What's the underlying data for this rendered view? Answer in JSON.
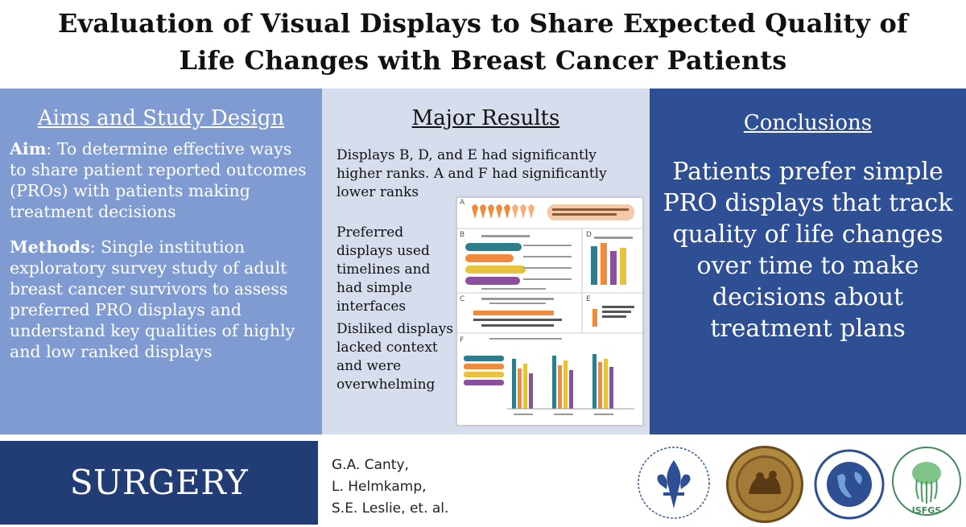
{
  "title": {
    "line1": "Evaluation of Visual Displays to Share Expected Quality of",
    "line2": "Life Changes with Breast Cancer Patients"
  },
  "aims": {
    "heading": "Aims and Study Design",
    "aim_label": "Aim",
    "aim_text": ": To determine effective ways to share patient reported outcomes (PROs) with patients making treatment decisions",
    "methods_label": "Methods",
    "methods_text": ": Single institution exploratory survey study of adult breast cancer survivors to assess preferred PRO displays and understand key qualities of highly and low ranked displays"
  },
  "results": {
    "heading": "Major Results",
    "para1": "Displays B, D, and E had significantly higher ranks. A and F had significantly lower ranks",
    "para2": "Preferred displays used timelines and had simple interfaces",
    "para3": "Disliked displays lacked context and were overwhelming",
    "thumb_labels": [
      "A",
      "B",
      "C",
      "D",
      "E",
      "F"
    ]
  },
  "conclusions": {
    "heading": "Conclusions",
    "text": "Patients prefer simple PRO displays that track quality of life changes over time to make decisions about treatment plans"
  },
  "footer": {
    "journal": "SURGERY",
    "authors": [
      "G.A. Canty,",
      "L. Helmkamp,",
      "S.E. Leslie, et. al."
    ],
    "logo_isfgs_text": "ISFGS"
  },
  "colors": {
    "aims_bg": "#7f9bd1",
    "results_bg": "#d6dded",
    "conclusions_bg": "#2e4f93",
    "journal_bg": "#223c75"
  },
  "icons": [
    "ribbon-icon",
    "university-society-logo",
    "central-surgical-association-seal",
    "endocrine-surgeons-logo",
    "isfgs-logo"
  ]
}
